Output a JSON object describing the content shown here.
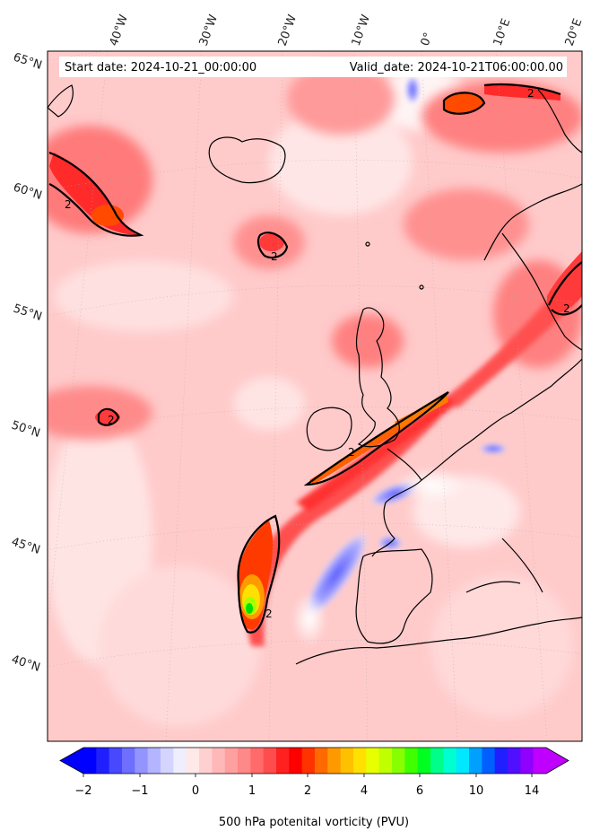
{
  "header": {
    "start_date": "Start date: 2024-10-21_00:00:00",
    "valid_date": "Valid_date: 2024-10-21T06:00:00.00"
  },
  "map": {
    "lon_labels": [
      "40°W",
      "30°W",
      "20°W",
      "10°W",
      "0°",
      "10°E",
      "20°E"
    ],
    "lat_labels": [
      "65°N",
      "60°N",
      "55°N",
      "50°N",
      "45°N",
      "40°N"
    ],
    "contour_label": "2",
    "colors": {
      "low_blue": "#0000ff",
      "white": "#ffffff",
      "pink": "#ffc8c8",
      "red": "#ff0000",
      "orange": "#ff7f00",
      "yellow_green": "#b0ff00",
      "green": "#00e000"
    }
  },
  "colorbar": {
    "title": "500 hPa potenital vorticity (PVU)",
    "tick_labels": [
      "−2",
      "−1",
      "0",
      "1",
      "2",
      "4",
      "6",
      "10",
      "14"
    ],
    "colors": [
      "#0000ff",
      "#2020ff",
      "#4848ff",
      "#6e6eff",
      "#9494ff",
      "#b4b4ff",
      "#d4d4ff",
      "#eeeeff",
      "#ffe8e8",
      "#ffd0d0",
      "#ffb8b8",
      "#ffa0a0",
      "#ff8888",
      "#ff6a6a",
      "#ff4c4c",
      "#ff2020",
      "#ff0000",
      "#ff3300",
      "#ff6a00",
      "#ff9900",
      "#ffc000",
      "#ffe000",
      "#e8ff00",
      "#c0ff00",
      "#88ff00",
      "#40ff00",
      "#00ff20",
      "#00ff88",
      "#00ffd0",
      "#00e8ff",
      "#00a0ff",
      "#0060ff",
      "#2020ff",
      "#5010ff",
      "#9000ff",
      "#c000ff"
    ]
  }
}
